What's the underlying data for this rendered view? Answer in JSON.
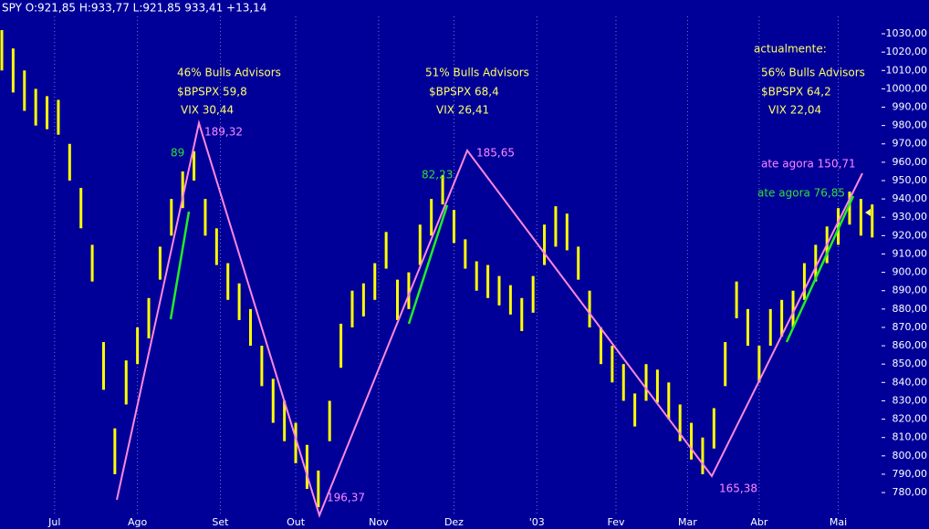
{
  "header": "SPY O:921,85 H:933,77 L:921,85 933,41 +13,14",
  "chart_data": {
    "type": "ohlc",
    "color": "#ffff00",
    "x": [
      0,
      3,
      6,
      9,
      12,
      15,
      18,
      21,
      24,
      27,
      30,
      33,
      36,
      39,
      42,
      45,
      48,
      51,
      54,
      57,
      60,
      63,
      66,
      69,
      72,
      75,
      78,
      81,
      84,
      87,
      90,
      93,
      96,
      99,
      102,
      105,
      108,
      111,
      114,
      117,
      120,
      123,
      126,
      129,
      132,
      135,
      138,
      141,
      144,
      147,
      150,
      153,
      156,
      159,
      162,
      165,
      168,
      171,
      174,
      177,
      180,
      183,
      186,
      189,
      192,
      195,
      198,
      201,
      204,
      207,
      210,
      213,
      216,
      219,
      222,
      225,
      228,
      231
    ],
    "high": [
      1032,
      1022,
      1010,
      1000,
      996,
      994,
      970,
      946,
      915,
      862,
      815,
      852,
      870,
      886,
      914,
      940,
      955,
      966,
      940,
      924,
      905,
      894,
      880,
      860,
      842,
      830,
      818,
      806,
      792,
      830,
      872,
      890,
      894,
      905,
      922,
      896,
      900,
      926,
      940,
      953,
      934,
      918,
      906,
      904,
      898,
      893,
      886,
      898,
      926,
      936,
      932,
      914,
      890,
      870,
      860,
      850,
      834,
      850,
      847,
      840,
      828,
      818,
      810,
      826,
      862,
      895,
      880,
      860,
      880,
      885,
      890,
      905,
      915,
      925,
      935,
      944,
      940,
      937
    ],
    "low": [
      1010,
      998,
      988,
      980,
      978,
      975,
      950,
      924,
      895,
      836,
      790,
      828,
      850,
      864,
      896,
      920,
      935,
      950,
      920,
      904,
      885,
      874,
      860,
      838,
      818,
      808,
      796,
      782,
      772,
      808,
      848,
      870,
      876,
      885,
      902,
      874,
      880,
      904,
      920,
      937,
      916,
      902,
      890,
      886,
      882,
      877,
      868,
      878,
      904,
      914,
      912,
      896,
      870,
      850,
      840,
      830,
      816,
      830,
      829,
      820,
      808,
      798,
      790,
      804,
      838,
      875,
      860,
      840,
      860,
      865,
      870,
      885,
      895,
      905,
      915,
      926,
      920,
      919
    ],
    "xlim": [
      0,
      233
    ],
    "ylim": [
      767.6,
      1048.4
    ],
    "xticks": [
      {
        "value": 14,
        "label": "Jul"
      },
      {
        "value": 36,
        "label": "Ago"
      },
      {
        "value": 58,
        "label": "Set"
      },
      {
        "value": 78,
        "label": "Out"
      },
      {
        "value": 100,
        "label": "Nov"
      },
      {
        "value": 120,
        "label": "Dez"
      },
      {
        "value": 142,
        "label": "'03"
      },
      {
        "value": 163,
        "label": "Fev"
      },
      {
        "value": 182,
        "label": "Mar"
      },
      {
        "value": 201,
        "label": "Abr"
      },
      {
        "value": 222,
        "label": "Mai"
      }
    ],
    "yticks": [
      {
        "value": 780,
        "label": "780,00"
      },
      {
        "value": 790,
        "label": "790,00"
      },
      {
        "value": 800,
        "label": "800,00"
      },
      {
        "value": 810,
        "label": "810,00"
      },
      {
        "value": 820,
        "label": "820,00"
      },
      {
        "value": 830,
        "label": "830,00"
      },
      {
        "value": 840,
        "label": "840,00"
      },
      {
        "value": 850,
        "label": "850,00"
      },
      {
        "value": 860,
        "label": "860,00"
      },
      {
        "value": 870,
        "label": "870,00"
      },
      {
        "value": 880,
        "label": "880,00"
      },
      {
        "value": 890,
        "label": "890,00"
      },
      {
        "value": 900,
        "label": "900,00"
      },
      {
        "value": 910,
        "label": "910,00"
      },
      {
        "value": 920,
        "label": "920,00"
      },
      {
        "value": 930,
        "label": "930,00"
      },
      {
        "value": 940,
        "label": "940,00"
      },
      {
        "value": 950,
        "label": "950,00"
      },
      {
        "value": 960,
        "label": "960,00"
      },
      {
        "value": 970,
        "label": "970,00"
      },
      {
        "value": 980,
        "label": "980,00"
      },
      {
        "value": 990,
        "label": "990,00"
      },
      {
        "value": 1000,
        "label": "1000,00"
      },
      {
        "value": 1010,
        "label": "1010,00"
      },
      {
        "value": 1020,
        "label": "1020,00"
      },
      {
        "value": 1030,
        "label": "1030,00"
      }
    ],
    "grid_x": true,
    "annotations": [
      {
        "text": "46% Bulls Advisors",
        "color": "#ffff66"
      },
      {
        "text": "$BPSPX 59,8",
        "color": "#ffff66"
      },
      {
        "text": "VIX 30,44",
        "color": "#ffff66"
      },
      {
        "text": "89",
        "color": "#33dd33"
      },
      {
        "text": "189,32",
        "color": "#ff88ff"
      },
      {
        "text": "51% Bulls Advisors",
        "color": "#ffff66"
      },
      {
        "text": "$BPSPX 68,4",
        "color": "#ffff66"
      },
      {
        "text": "VIX 26,41",
        "color": "#ffff66"
      },
      {
        "text": "82,23",
        "color": "#33dd33"
      },
      {
        "text": "185,65",
        "color": "#ff88ff"
      },
      {
        "text": "196,37",
        "color": "#ff88ff"
      },
      {
        "text": "165,38",
        "color": "#ff88ff"
      },
      {
        "text": "actualmente:",
        "color": "#ffff66"
      },
      {
        "text": "56% Bulls Advisors",
        "color": "#ffff66"
      },
      {
        "text": "$BPSPX 64,2",
        "color": "#ffff66"
      },
      {
        "text": "VIX 22,04",
        "color": "#ffff66"
      },
      {
        "text": "ate agora 150,71",
        "color": "#ff88ff"
      },
      {
        "text": "ate agora 76,85",
        "color": "#33dd33"
      }
    ]
  }
}
